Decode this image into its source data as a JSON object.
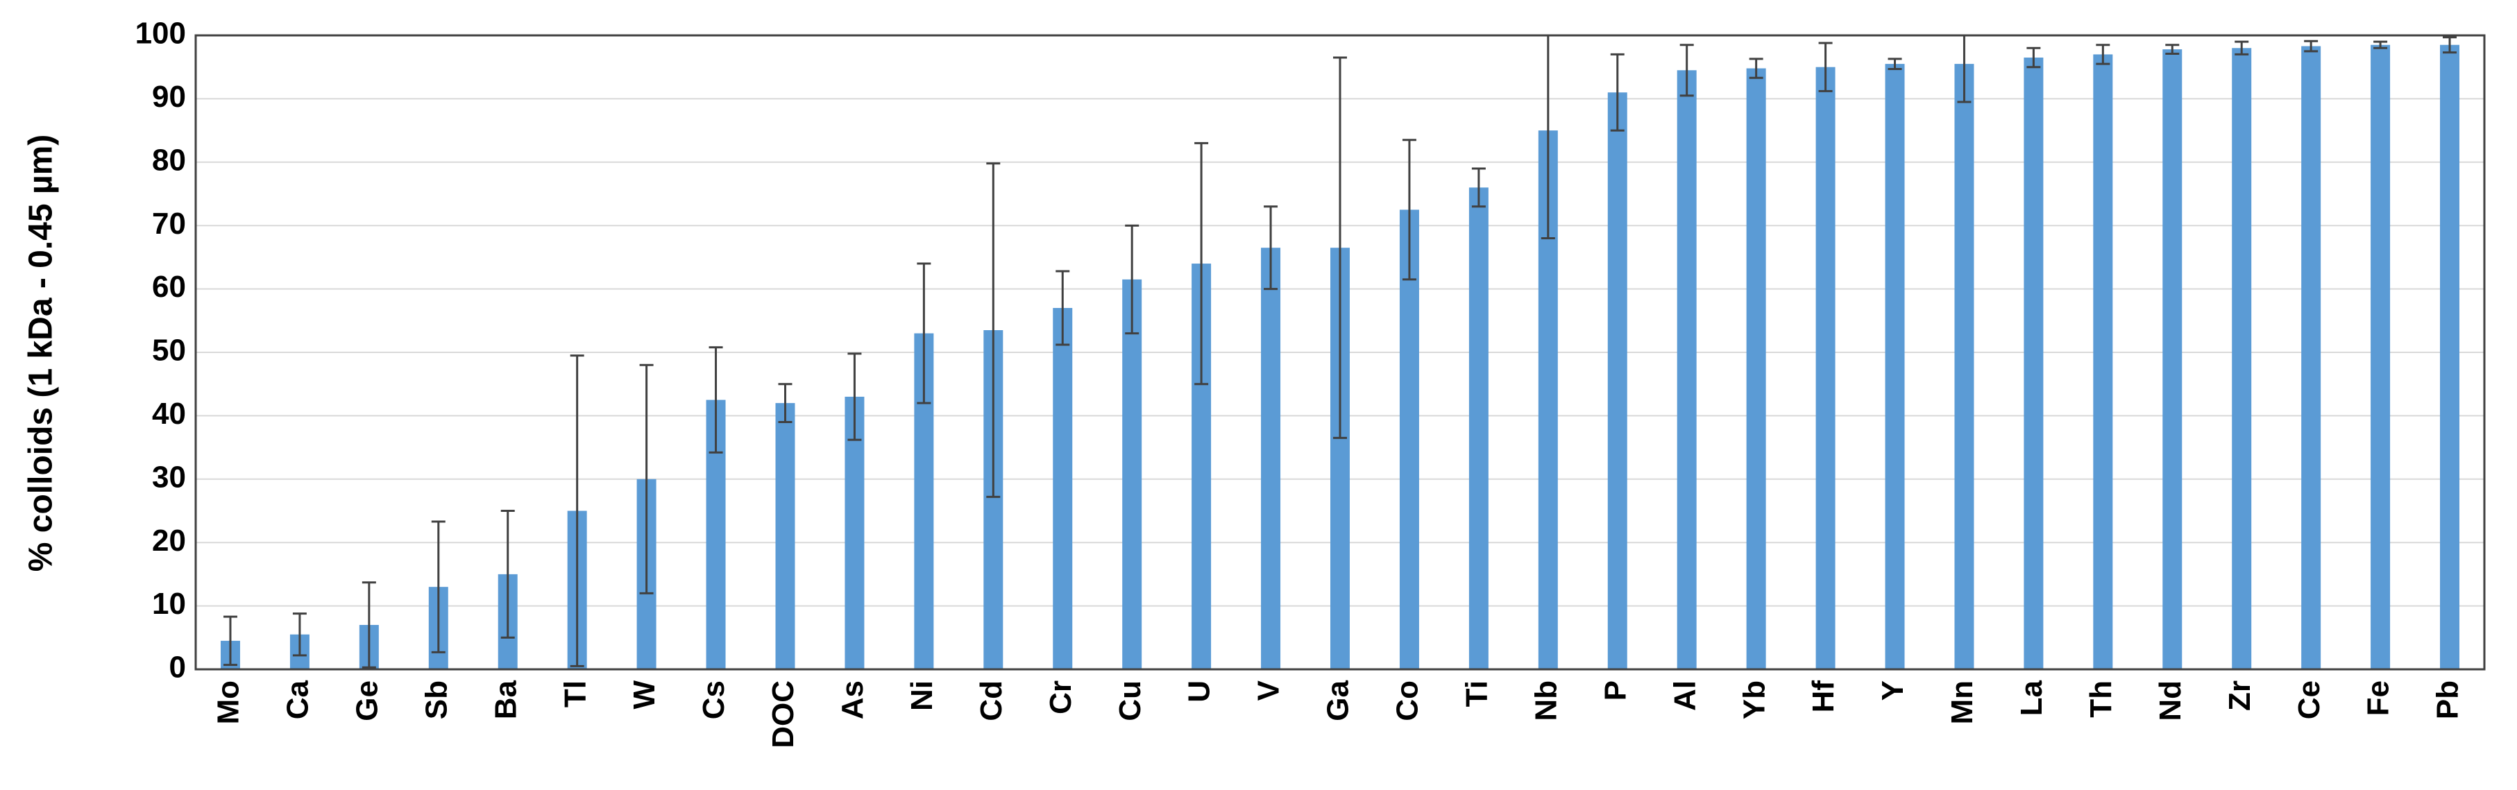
{
  "chart_data": {
    "type": "bar",
    "y_label": "% colloids (1 kDa - 0.45 µm)",
    "categories": [
      "Mo",
      "Ca",
      "Ge",
      "Sb",
      "Ba",
      "Tl",
      "W",
      "Cs",
      "DOC",
      "As",
      "Ni",
      "Cd",
      "Cr",
      "Cu",
      "U",
      "V",
      "Ga",
      "Co",
      "Ti",
      "Nb",
      "P",
      "Al",
      "Yb",
      "Hf",
      "Y",
      "Mn",
      "La",
      "Th",
      "Nd",
      "Zr",
      "Ce",
      "Fe",
      "Pb"
    ],
    "values": [
      4.5,
      5.5,
      7,
      13,
      15,
      25,
      30,
      42.5,
      42,
      43,
      53,
      53.5,
      57,
      61.5,
      64,
      66.5,
      66.5,
      72.5,
      76,
      85,
      91,
      94.5,
      94.8,
      95,
      95.5,
      95.5,
      96.5,
      97,
      97.8,
      98,
      98.3,
      98.5,
      98.5
    ],
    "errors": [
      3.8,
      3.3,
      6.7,
      10.3,
      10,
      24.5,
      18,
      8.3,
      3,
      6.8,
      11,
      26.3,
      5.8,
      8.5,
      19,
      6.5,
      30,
      11,
      3,
      17,
      6,
      4,
      1.5,
      3.8,
      0.8,
      6,
      1.5,
      1.5,
      0.7,
      1,
      0.8,
      0.5,
      1.2
    ],
    "color": "#5b9bd5",
    "error_color": "#404040",
    "ylim": [
      0,
      100
    ],
    "yticks": [
      0,
      10,
      20,
      30,
      40,
      50,
      60,
      70,
      80,
      90,
      100
    ],
    "grid": true
  }
}
